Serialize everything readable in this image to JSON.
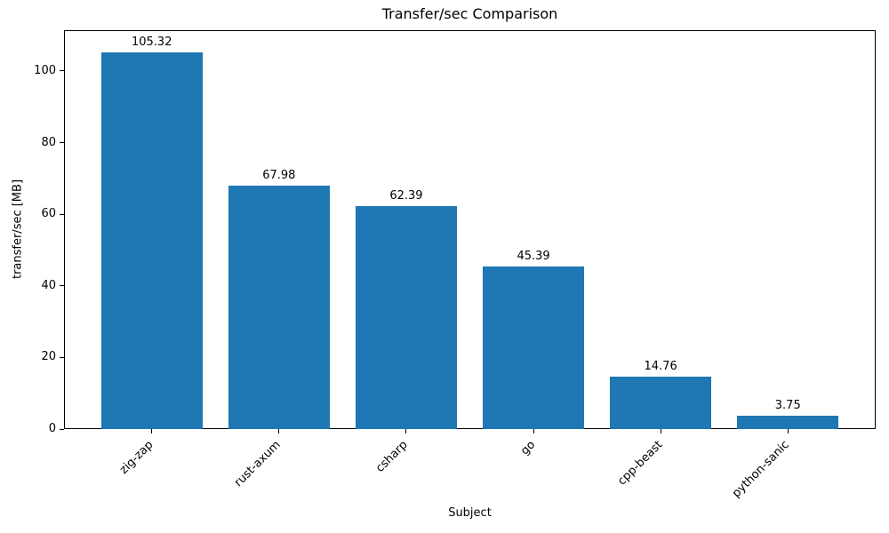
{
  "figure": {
    "background_color": "#ffffff",
    "text_color": "#000000"
  },
  "chart_data": {
    "type": "bar",
    "title": "Transfer/sec Comparison",
    "xlabel": "Subject",
    "ylabel": "transfer/sec [MB]",
    "categories": [
      "zig-zap",
      "rust-axum",
      "csharp",
      "go",
      "cpp-beast",
      "python-sanic"
    ],
    "values": [
      105.32,
      67.98,
      62.39,
      45.39,
      14.76,
      3.75
    ],
    "value_labels": [
      "105.32",
      "67.98",
      "62.39",
      "45.39",
      "14.76",
      "3.75"
    ],
    "yticks": [
      0,
      20,
      40,
      60,
      80,
      100
    ],
    "ylim": [
      0,
      111.4
    ],
    "xlim": [
      -0.69,
      5.69
    ],
    "bar_width_units": 0.8,
    "bar_color": "#1f77b4",
    "grid": false,
    "legend_position": "none",
    "xtick_label_rotation": 45
  }
}
